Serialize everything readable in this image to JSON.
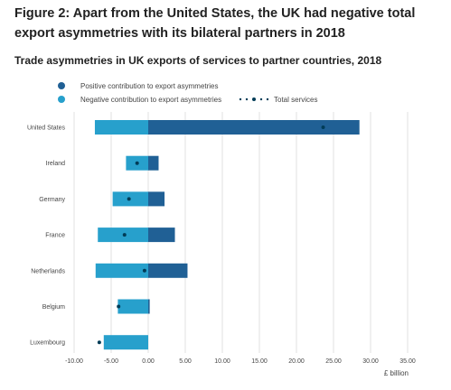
{
  "figure": {
    "title": "Figure 2: Apart from the United States, the UK had negative total export asymmetries with its bilateral partners in 2018",
    "subtitle": "Trade asymmetries in UK exports of services to partner countries, 2018"
  },
  "chart_data": {
    "type": "bar",
    "orientation": "horizontal",
    "stacked": true,
    "categories": [
      "United States",
      "Ireland",
      "Germany",
      "France",
      "Netherlands",
      "Belgium",
      "Luxembourg"
    ],
    "series": [
      {
        "name": "Positive contribution to export asymmetries",
        "color": "#206095",
        "values": [
          28.5,
          1.4,
          2.2,
          3.6,
          5.3,
          0.2,
          0.0
        ]
      },
      {
        "name": "Negative contribution to export asymmetries",
        "color": "#27a0cc",
        "values": [
          -7.2,
          -3.0,
          -4.8,
          -6.8,
          -7.1,
          -4.1,
          -6.0
        ]
      }
    ],
    "total": {
      "name": "Total services",
      "color": "#003c57",
      "values": [
        23.6,
        -1.5,
        -2.6,
        -3.2,
        -0.5,
        -4.0,
        -6.6
      ]
    },
    "x_ticks": [
      -10,
      -5,
      0,
      5,
      10,
      15,
      20,
      25,
      30,
      35
    ],
    "x_tick_labels": [
      "-10.00",
      "-5.00",
      "0.00",
      "5.00",
      "10.00",
      "15.00",
      "20.00",
      "25.00",
      "30.00",
      "35.00"
    ],
    "xlim": [
      -10,
      35
    ],
    "xlabel": "£ billion",
    "ylabel": "",
    "grid": "vertical",
    "legend_position": "top"
  }
}
